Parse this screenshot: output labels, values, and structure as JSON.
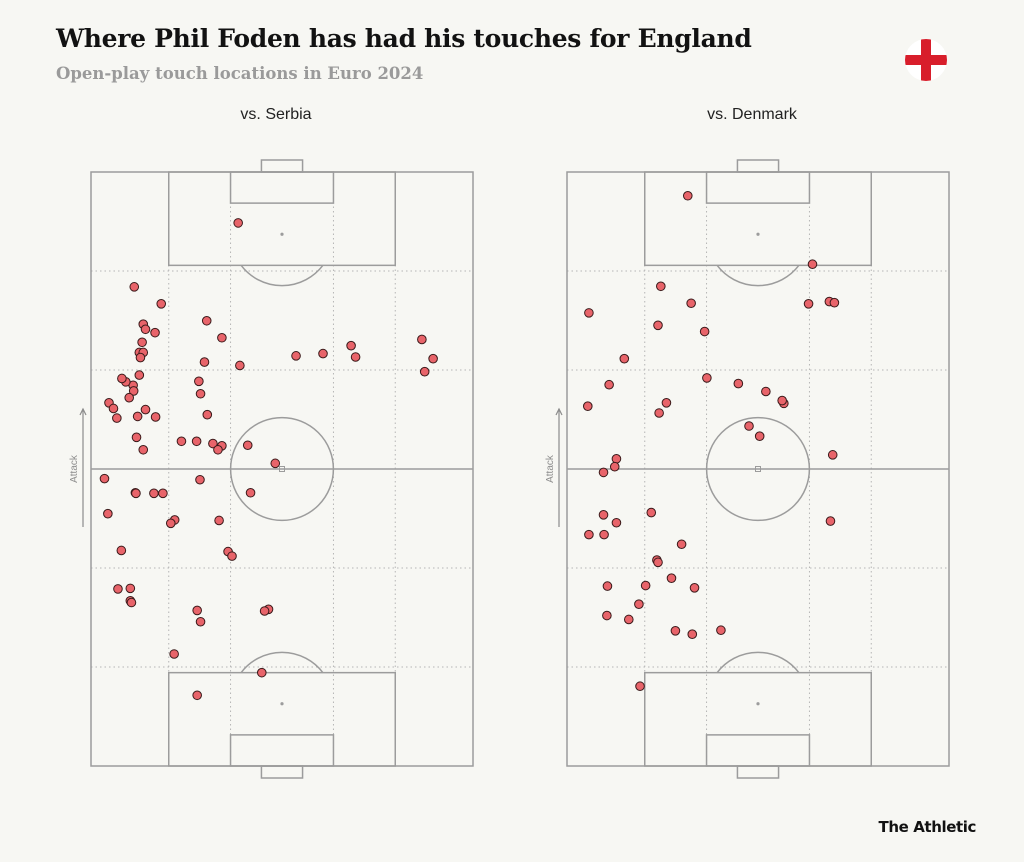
{
  "title": "Where Phil Foden has had his touches for England",
  "subtitle": "Open-play touch locations in Euro 2024",
  "flag_icon": "england-flag-icon",
  "brand": "The Athletic",
  "colors": {
    "background": "#f7f7f3",
    "dot_fill": "#e8646a",
    "dot_stroke": "#3a1a1a",
    "pitch_lines": "#9c9c9c"
  },
  "chart_data": [
    {
      "type": "scatter",
      "title": "vs. Serbia",
      "ylabel": "Attack",
      "x_range": [
        0,
        68
      ],
      "y_range": [
        0,
        105
      ],
      "y_direction": "attacking upward",
      "points": [
        [
          26.2,
          96.0
        ],
        [
          7.7,
          84.7
        ],
        [
          12.5,
          81.7
        ],
        [
          20.6,
          78.7
        ],
        [
          9.3,
          78.1
        ],
        [
          9.7,
          77.2
        ],
        [
          11.4,
          76.6
        ],
        [
          23.3,
          75.7
        ],
        [
          9.1,
          74.9
        ],
        [
          8.6,
          73.1
        ],
        [
          9.3,
          73.1
        ],
        [
          36.5,
          72.5
        ],
        [
          41.3,
          72.9
        ],
        [
          46.3,
          74.3
        ],
        [
          58.9,
          75.4
        ],
        [
          20.2,
          71.4
        ],
        [
          26.5,
          70.8
        ],
        [
          8.8,
          72.2
        ],
        [
          47.1,
          72.3
        ],
        [
          60.9,
          72.0
        ],
        [
          59.4,
          69.7
        ],
        [
          8.6,
          69.1
        ],
        [
          19.2,
          68.0
        ],
        [
          7.5,
          67.3
        ],
        [
          6.2,
          67.9
        ],
        [
          5.5,
          68.5
        ],
        [
          19.5,
          65.8
        ],
        [
          3.2,
          64.2
        ],
        [
          7.6,
          66.3
        ],
        [
          4.0,
          63.2
        ],
        [
          6.8,
          65.1
        ],
        [
          9.7,
          63.0
        ],
        [
          8.3,
          61.8
        ],
        [
          11.5,
          61.7
        ],
        [
          20.7,
          62.1
        ],
        [
          4.6,
          61.5
        ],
        [
          8.1,
          58.1
        ],
        [
          9.3,
          55.9
        ],
        [
          16.1,
          57.4
        ],
        [
          18.8,
          57.4
        ],
        [
          21.7,
          57.0
        ],
        [
          23.3,
          56.6
        ],
        [
          22.6,
          55.9
        ],
        [
          27.9,
          56.7
        ],
        [
          32.8,
          53.5
        ],
        [
          2.4,
          50.8
        ],
        [
          19.4,
          50.6
        ],
        [
          7.9,
          48.3
        ],
        [
          8.0,
          48.2
        ],
        [
          11.2,
          48.2
        ],
        [
          12.8,
          48.2
        ],
        [
          28.4,
          48.3
        ],
        [
          3.0,
          44.6
        ],
        [
          14.9,
          43.5
        ],
        [
          14.2,
          42.9
        ],
        [
          22.8,
          43.4
        ],
        [
          5.4,
          38.1
        ],
        [
          24.4,
          37.9
        ],
        [
          25.1,
          37.1
        ],
        [
          4.8,
          31.3
        ],
        [
          7.0,
          31.4
        ],
        [
          7.0,
          29.2
        ],
        [
          7.2,
          28.9
        ],
        [
          18.9,
          27.5
        ],
        [
          31.6,
          27.7
        ],
        [
          30.9,
          27.4
        ],
        [
          19.5,
          25.5
        ],
        [
          14.8,
          19.8
        ],
        [
          30.4,
          16.5
        ],
        [
          18.9,
          12.5
        ]
      ]
    },
    {
      "type": "scatter",
      "title": "vs. Denmark",
      "ylabel": "Attack",
      "x_range": [
        0,
        68
      ],
      "y_range": [
        0,
        105
      ],
      "y_direction": "attacking upward",
      "points": [
        [
          21.5,
          100.8
        ],
        [
          43.7,
          88.7
        ],
        [
          16.7,
          84.8
        ],
        [
          46.7,
          82.1
        ],
        [
          47.6,
          81.9
        ],
        [
          22.1,
          81.8
        ],
        [
          43.0,
          81.7
        ],
        [
          3.9,
          80.1
        ],
        [
          16.2,
          77.9
        ],
        [
          24.5,
          76.8
        ],
        [
          10.2,
          72.0
        ],
        [
          24.9,
          68.6
        ],
        [
          30.5,
          67.6
        ],
        [
          7.5,
          67.4
        ],
        [
          35.4,
          66.2
        ],
        [
          38.6,
          64.1
        ],
        [
          38.3,
          64.6
        ],
        [
          17.7,
          64.2
        ],
        [
          3.7,
          63.6
        ],
        [
          16.4,
          62.4
        ],
        [
          32.4,
          60.1
        ],
        [
          34.3,
          58.3
        ],
        [
          47.3,
          55.0
        ],
        [
          8.8,
          54.3
        ],
        [
          8.5,
          52.9
        ],
        [
          6.5,
          51.9
        ],
        [
          6.5,
          44.4
        ],
        [
          15.0,
          44.8
        ],
        [
          46.9,
          43.3
        ],
        [
          8.8,
          43.0
        ],
        [
          3.9,
          40.9
        ],
        [
          6.6,
          40.9
        ],
        [
          20.4,
          39.2
        ],
        [
          16.0,
          36.4
        ],
        [
          16.2,
          36.0
        ],
        [
          18.6,
          33.2
        ],
        [
          14.0,
          31.9
        ],
        [
          7.2,
          31.8
        ],
        [
          22.7,
          31.5
        ],
        [
          12.8,
          28.6
        ],
        [
          7.1,
          26.6
        ],
        [
          11.0,
          25.9
        ],
        [
          19.3,
          23.9
        ],
        [
          22.3,
          23.3
        ],
        [
          27.4,
          24.0
        ],
        [
          13.0,
          14.1
        ]
      ]
    }
  ]
}
